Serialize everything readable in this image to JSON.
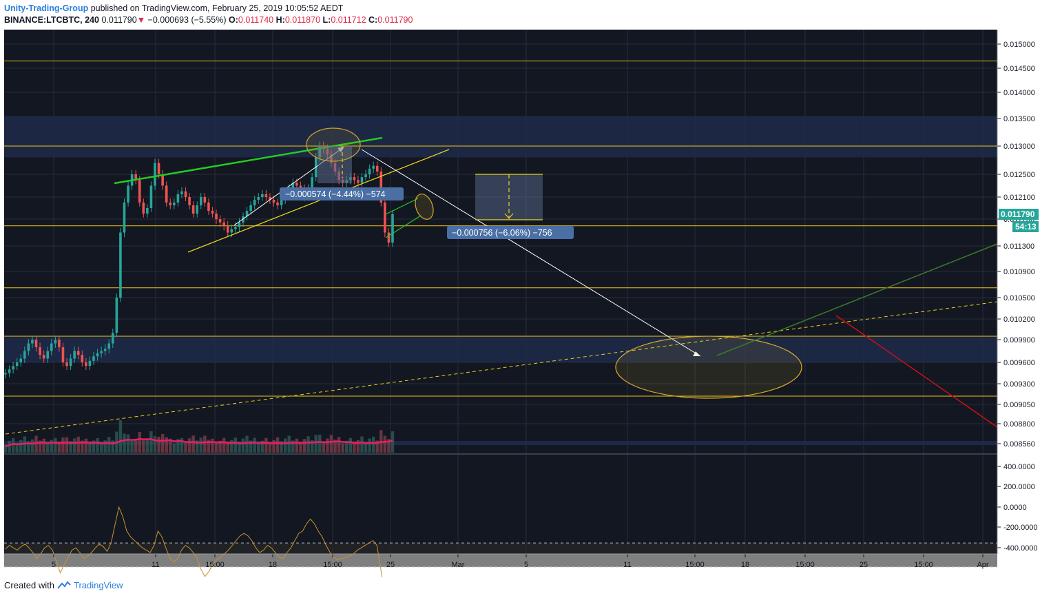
{
  "header": {
    "author": "Unity-Trading-Group",
    "published": "published on TradingView.com, February 25, 2019 10:05:52 AEDT",
    "symbol": "BINANCE:LTCBTC, 240",
    "price": "0.011790",
    "change_arrow": "▼",
    "change": "−0.000693 (−5.55%)",
    "o_label": "O:",
    "o": "0.011740",
    "h_label": "H:",
    "h": "0.011870",
    "l_label": "L:",
    "l": "0.011712",
    "c_label": "C:",
    "c": "0.011790"
  },
  "footer": {
    "created_with": "Created with",
    "brand": "TradingView",
    "logo_icon": "tradingview-logo-icon"
  },
  "badges": {
    "last_price": "0.011790",
    "countdown": "54:13"
  },
  "measures": {
    "upper": "−0.000574 (−4.44%) −574",
    "lower": "−0.000756 (−6.06%) −756"
  },
  "colors": {
    "background": "#131722",
    "grid": "#2a2e39",
    "up": "#26a69a",
    "down": "#ef5350",
    "hline": "#f0c419",
    "zone": "#1e2a4a",
    "volume_ma": "#e91e63",
    "cci": "#c8932e",
    "trend_green": "#22cc22",
    "trend_yellow": "#e8d21d",
    "projection": "#ffffff",
    "red_line": "#cc1111",
    "dark_green_line": "#3d7a2a",
    "badge": "#26a69a",
    "measure_box": "#4a6fa5"
  },
  "chart_data": {
    "type": "candlestick",
    "symbol": "BINANCE:LTCBTC",
    "interval": "240",
    "x_ticks": [
      "5",
      "11",
      "15:00",
      "18",
      "15:00",
      "25",
      "Mar",
      "5",
      "11",
      "15:00",
      "18",
      "15:00",
      "25",
      "15:00",
      "Apr"
    ],
    "price_ticks": [
      "0.015000",
      "0.014500",
      "0.014000",
      "0.013500",
      "0.013000",
      "0.012500",
      "0.012100",
      "0.011700",
      "0.011300",
      "0.010900",
      "0.010500",
      "0.010200",
      "0.009900",
      "0.009600",
      "0.009300",
      "0.009050",
      "0.008800",
      "0.008560"
    ],
    "cci_ticks": [
      "400.0000",
      "200.0000",
      "0.0000",
      "-200.0000",
      "-400.0000"
    ],
    "horizontal_levels": [
      0.01465,
      0.013,
      0.0116,
      0.01065,
      0.00995,
      0.00915
    ],
    "zones": [
      [
        0.0128,
        0.01355
      ],
      [
        0.0096,
        0.00995
      ]
    ],
    "ohlc": {
      "open": 0.01174,
      "high": 0.01187,
      "low": 0.011712,
      "close": 0.01179
    },
    "change": -0.000693,
    "change_pct": -5.55,
    "close_series": [
      0.00945,
      0.0095,
      0.00955,
      0.0096,
      0.00965,
      0.00975,
      0.00985,
      0.0099,
      0.0098,
      0.0097,
      0.00965,
      0.00975,
      0.00985,
      0.0099,
      0.0098,
      0.0096,
      0.00955,
      0.00965,
      0.00975,
      0.0097,
      0.0096,
      0.00955,
      0.00962,
      0.00968,
      0.00972,
      0.00975,
      0.00978,
      0.00985,
      0.01,
      0.0105,
      0.0115,
      0.012,
      0.0123,
      0.0125,
      0.0124,
      0.012,
      0.0118,
      0.0119,
      0.0123,
      0.0127,
      0.0125,
      0.0123,
      0.012,
      0.01195,
      0.012,
      0.01215,
      0.0122,
      0.0121,
      0.01195,
      0.0118,
      0.01195,
      0.0121,
      0.012,
      0.01185,
      0.0118,
      0.0117,
      0.01165,
      0.0116,
      0.0115,
      0.01155,
      0.01158,
      0.01165,
      0.01175,
      0.01185,
      0.01195,
      0.01205,
      0.0121,
      0.01215,
      0.0121,
      0.01205,
      0.012,
      0.01195,
      0.01205,
      0.01215,
      0.01225,
      0.01235,
      0.0123,
      0.01225,
      0.0121,
      0.01225,
      0.01245,
      0.0128,
      0.013,
      0.01295,
      0.01285,
      0.0127,
      0.01255,
      0.0124,
      0.01235,
      0.0124,
      0.01245,
      0.0124,
      0.01235,
      0.01245,
      0.0125,
      0.0126,
      0.01265,
      0.01255,
      0.012,
      0.0115,
      0.01135,
      0.01179
    ],
    "cci_series": [
      50,
      80,
      60,
      40,
      70,
      90,
      60,
      20,
      -30,
      10,
      60,
      80,
      40,
      -50,
      -150,
      -80,
      -20,
      40,
      60,
      20,
      -30,
      -10,
      20,
      60,
      90,
      70,
      30,
      100,
      250,
      400,
      320,
      200,
      150,
      120,
      90,
      60,
      40,
      20,
      80,
      200,
      150,
      60,
      -20,
      -60,
      -30,
      40,
      80,
      60,
      20,
      -30,
      -120,
      -180,
      -140,
      -80,
      -40,
      -20,
      10,
      40,
      80,
      120,
      160,
      180,
      160,
      120,
      60,
      20,
      40,
      80,
      60,
      20,
      -20,
      -30,
      20,
      60,
      120,
      180,
      200,
      260,
      300,
      260,
      200,
      150,
      80,
      20,
      -20,
      -40,
      -30,
      -20,
      -10,
      10,
      40,
      60,
      80,
      100,
      120,
      80,
      -120,
      -350,
      -400,
      -210
    ]
  }
}
